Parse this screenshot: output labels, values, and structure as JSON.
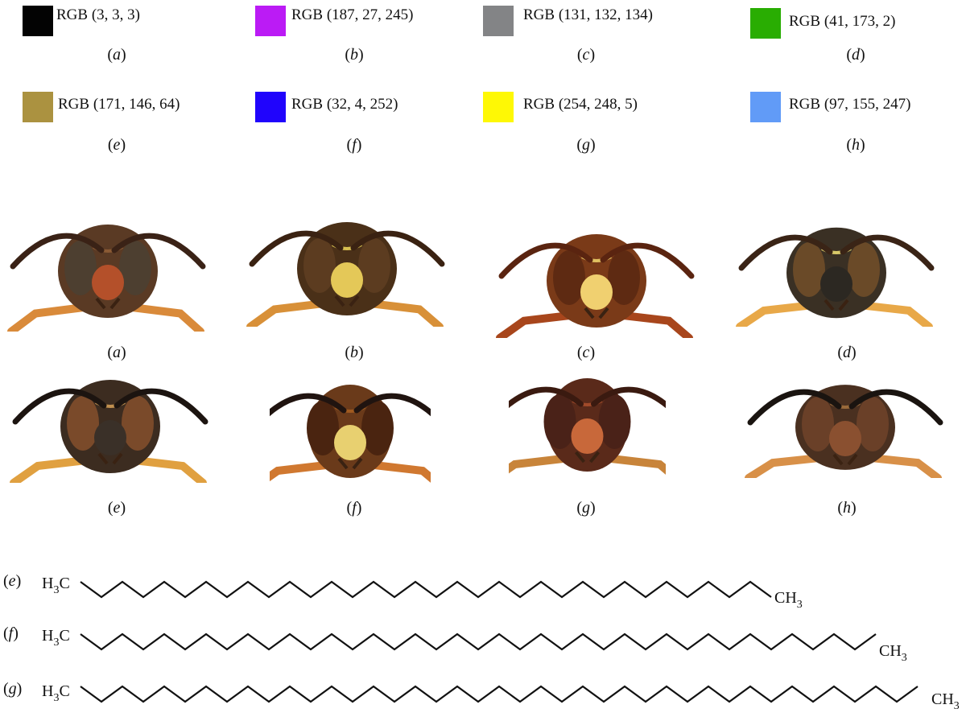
{
  "swatches": [
    {
      "panel": "a",
      "label": "RGB (3, 3, 3)",
      "color": "#030303"
    },
    {
      "panel": "b",
      "label": "RGB (187, 27, 245)",
      "color": "#bb1bf5"
    },
    {
      "panel": "c",
      "label": "RGB (131, 132, 134)",
      "color": "#838486"
    },
    {
      "panel": "d",
      "label": "RGB (41, 173, 2)",
      "color": "#29ad02"
    },
    {
      "panel": "e",
      "label": "RGB (171, 146, 64)",
      "color": "#ab9240"
    },
    {
      "panel": "f",
      "label": "RGB (32, 4, 252)",
      "color": "#2004fc"
    },
    {
      "panel": "g",
      "label": "RGB (254, 248, 5)",
      "color": "#fef805"
    },
    {
      "panel": "h",
      "label": "RGB (97, 155, 247)",
      "color": "#619bf7"
    }
  ],
  "photos": [
    {
      "panel": "a",
      "icon": "wasp-face-photo"
    },
    {
      "panel": "b",
      "icon": "wasp-face-photo"
    },
    {
      "panel": "c",
      "icon": "wasp-face-photo"
    },
    {
      "panel": "d",
      "icon": "wasp-face-photo"
    },
    {
      "panel": "e",
      "icon": "wasp-face-photo"
    },
    {
      "panel": "f",
      "icon": "wasp-face-photo"
    },
    {
      "panel": "g",
      "icon": "wasp-face-photo"
    },
    {
      "panel": "h",
      "icon": "wasp-face-photo"
    }
  ],
  "molecules": [
    {
      "panel": "e",
      "left_group": "H",
      "left_sub": "3",
      "left_tail": "C",
      "right_group": "CH",
      "right_sub": "3"
    },
    {
      "panel": "f",
      "left_group": "H",
      "left_sub": "3",
      "left_tail": "C",
      "right_group": "CH",
      "right_sub": "3"
    },
    {
      "panel": "g",
      "left_group": "H",
      "left_sub": "3",
      "left_tail": "C",
      "right_group": "CH",
      "right_sub": "3"
    }
  ]
}
